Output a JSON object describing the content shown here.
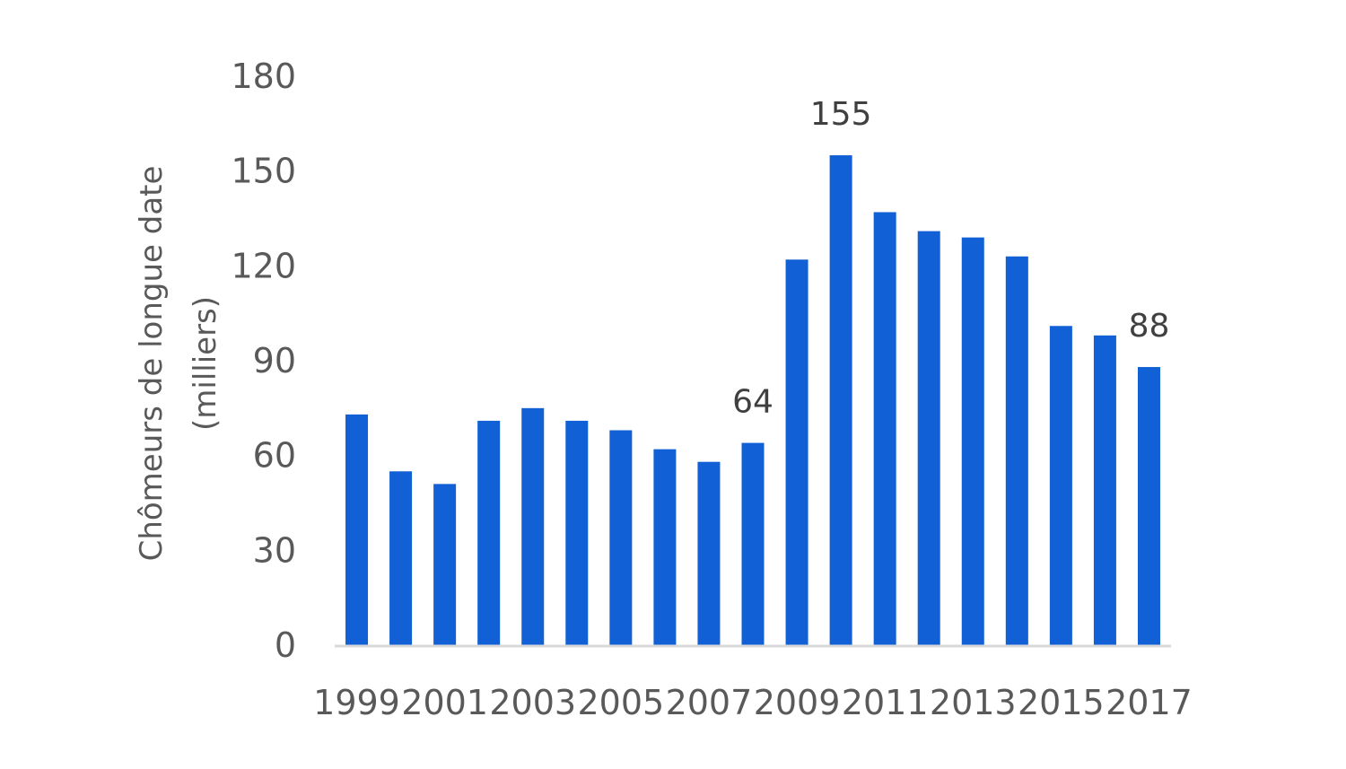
{
  "chart_data": {
    "type": "bar",
    "categories": [
      "1999",
      "2000",
      "2001",
      "2002",
      "2003",
      "2004",
      "2005",
      "2006",
      "2007",
      "2008",
      "2009",
      "2010",
      "2011",
      "2012",
      "2013",
      "2014",
      "2015",
      "2016",
      "2017"
    ],
    "x_tick_labels": [
      "1999",
      "2001",
      "2003",
      "2005",
      "2007",
      "2009",
      "2011",
      "2013",
      "2015",
      "2017"
    ],
    "values": [
      73,
      55,
      51,
      71,
      75,
      71,
      68,
      62,
      58,
      64,
      122,
      155,
      137,
      131,
      129,
      123,
      101,
      98,
      88
    ],
    "data_labels": [
      {
        "category": "2008",
        "text": "64"
      },
      {
        "category": "2010",
        "text": "155"
      },
      {
        "category": "2017",
        "text": "88"
      }
    ],
    "ylabel_line1": "Chômeurs de longue date",
    "ylabel_line2": "(milliers)",
    "xlabel": "",
    "title": "",
    "ylim": [
      0,
      180
    ],
    "y_ticks": [
      "0",
      "30",
      "60",
      "90",
      "120",
      "150",
      "180"
    ],
    "grid": false,
    "legend": "none",
    "bar_color": "#1160d5",
    "axis_color": "#d9d9d9"
  }
}
